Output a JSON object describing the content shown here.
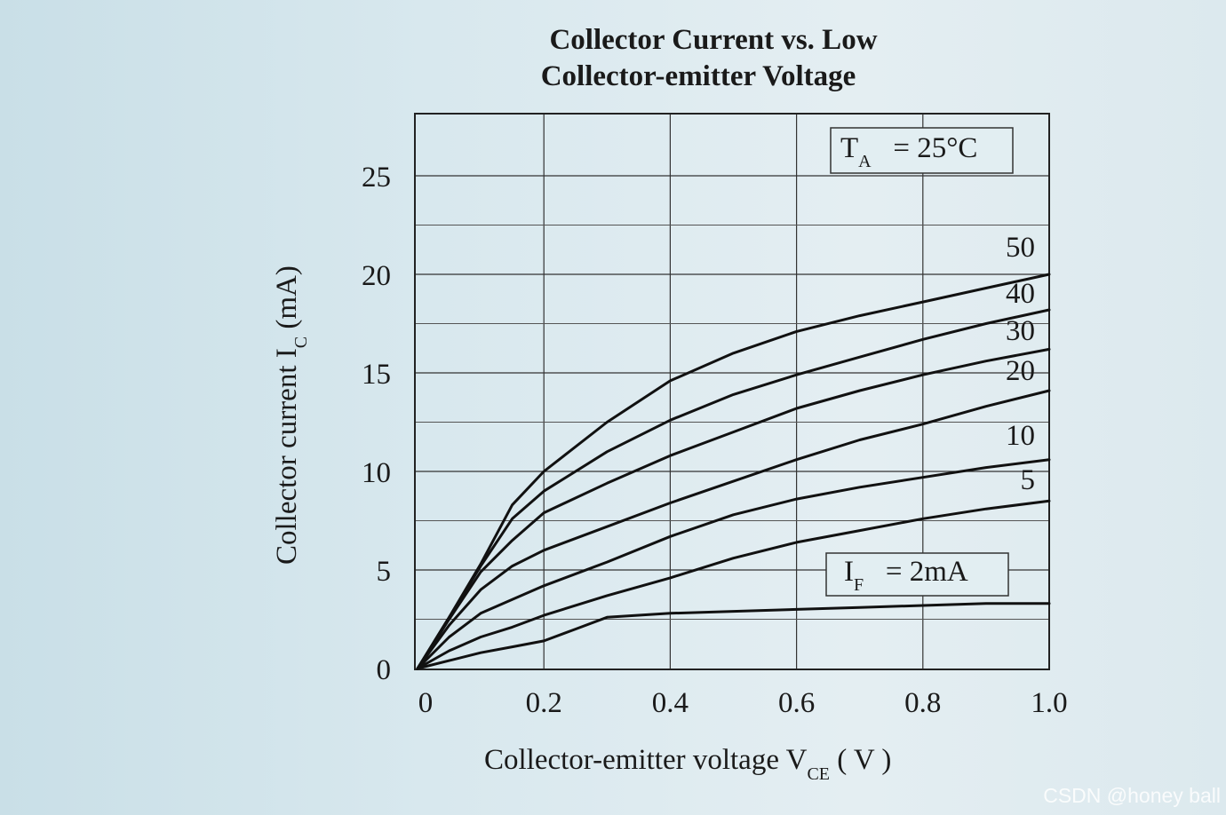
{
  "chart_data": {
    "type": "line",
    "title_line1": "Collector Current vs. Low",
    "title_line2": "Collector-emitter Voltage",
    "xlabel_main": "Collector-emitter voltage V",
    "xlabel_sub": "CE",
    "xlabel_unit": " ( V )",
    "ylabel_main": "Collector current I",
    "ylabel_sub": "C",
    "ylabel_unit": " (mA)",
    "xlim": [
      0,
      1.0
    ],
    "ylim": [
      0,
      27
    ],
    "x_ticks": [
      0,
      0.2,
      0.4,
      0.6,
      0.8,
      1.0
    ],
    "x_tick_labels": [
      "0",
      "0.2",
      "0.4",
      "0.6",
      "0.8",
      "1.0"
    ],
    "y_ticks": [
      0,
      5,
      10,
      15,
      20,
      25
    ],
    "y_tick_labels": [
      "0",
      "5",
      "10",
      "15",
      "20",
      "25"
    ],
    "grid": true,
    "temperature_box": {
      "main": "T",
      "sub": "A",
      "rest": "   = 25°C"
    },
    "if_box": {
      "main": "I",
      "sub": "F",
      "rest": "   = 2mA"
    },
    "series": [
      {
        "name": "50",
        "x": [
          0,
          0.05,
          0.1,
          0.15,
          0.2,
          0.3,
          0.4,
          0.5,
          0.6,
          0.7,
          0.8,
          0.9,
          1.0
        ],
        "y": [
          0,
          2.6,
          5.3,
          8.3,
          10.0,
          12.5,
          14.6,
          16.0,
          17.1,
          17.9,
          18.6,
          19.3,
          20.0
        ]
      },
      {
        "name": "40",
        "x": [
          0,
          0.05,
          0.1,
          0.15,
          0.2,
          0.3,
          0.4,
          0.5,
          0.6,
          0.7,
          0.8,
          0.9,
          1.0
        ],
        "y": [
          0,
          2.6,
          5.2,
          7.6,
          9.0,
          11.0,
          12.6,
          13.9,
          14.9,
          15.8,
          16.7,
          17.5,
          18.2
        ]
      },
      {
        "name": "30",
        "x": [
          0,
          0.05,
          0.1,
          0.15,
          0.2,
          0.3,
          0.4,
          0.5,
          0.6,
          0.7,
          0.8,
          0.9,
          1.0
        ],
        "y": [
          0,
          2.5,
          4.9,
          6.5,
          7.9,
          9.4,
          10.8,
          12.0,
          13.2,
          14.1,
          14.9,
          15.6,
          16.2
        ]
      },
      {
        "name": "20",
        "x": [
          0,
          0.05,
          0.1,
          0.15,
          0.2,
          0.3,
          0.4,
          0.5,
          0.6,
          0.7,
          0.8,
          0.9,
          1.0
        ],
        "y": [
          0,
          2.2,
          4.0,
          5.2,
          6.0,
          7.2,
          8.4,
          9.5,
          10.6,
          11.6,
          12.4,
          13.3,
          14.1
        ]
      },
      {
        "name": "10",
        "x": [
          0,
          0.05,
          0.1,
          0.15,
          0.2,
          0.3,
          0.4,
          0.5,
          0.6,
          0.7,
          0.8,
          0.9,
          1.0
        ],
        "y": [
          0,
          1.6,
          2.8,
          3.5,
          4.2,
          5.4,
          6.7,
          7.8,
          8.6,
          9.2,
          9.7,
          10.2,
          10.6
        ]
      },
      {
        "name": "5",
        "x": [
          0,
          0.05,
          0.1,
          0.15,
          0.2,
          0.3,
          0.4,
          0.5,
          0.6,
          0.7,
          0.8,
          0.9,
          1.0
        ],
        "y": [
          0,
          0.9,
          1.6,
          2.1,
          2.7,
          3.7,
          4.6,
          5.6,
          6.4,
          7.0,
          7.6,
          8.1,
          8.5
        ]
      },
      {
        "name": "2mA",
        "x": [
          0,
          0.05,
          0.1,
          0.15,
          0.2,
          0.25,
          0.3,
          0.4,
          0.5,
          0.6,
          0.7,
          0.8,
          0.9,
          1.0
        ],
        "y": [
          0,
          0.4,
          0.8,
          1.1,
          1.4,
          2.0,
          2.6,
          2.8,
          2.9,
          3.0,
          3.1,
          3.2,
          3.3,
          3.3
        ]
      }
    ],
    "series_labels": [
      "50",
      "40",
      "30",
      "20",
      "10",
      "5"
    ]
  },
  "watermark": "CSDN @honey ball"
}
